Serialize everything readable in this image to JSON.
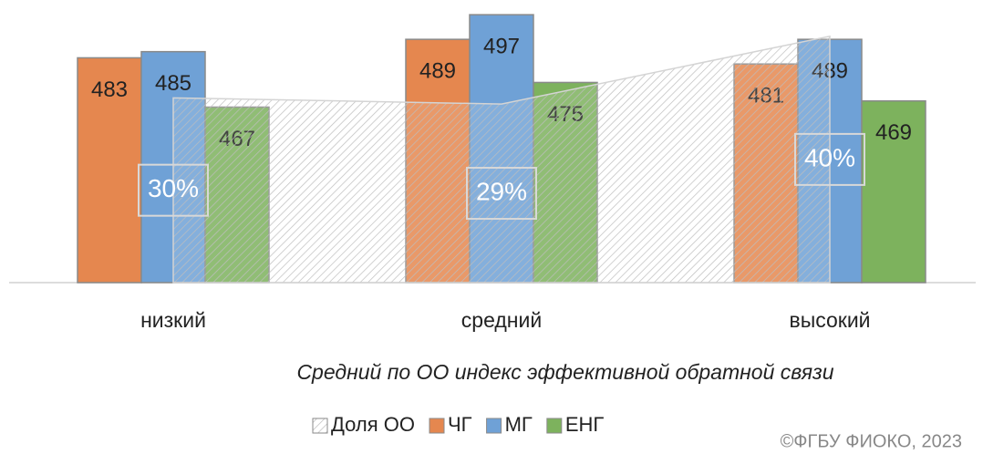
{
  "chart_data": {
    "type": "bar",
    "categories": [
      "низкий",
      "средний",
      "высокий"
    ],
    "x_label": "Средний по ОО индекс  эффективной обратной связи",
    "source": "©ФГБУ ФИОКО, 2023",
    "ylim": [
      410,
      500
    ],
    "y2lim": [
      0,
      45
    ],
    "legend": "bottom",
    "series": [
      {
        "name": "Доля ОО",
        "type": "area",
        "axis": "y2",
        "color": "#b0b0b0",
        "values": [
          30,
          29,
          40
        ],
        "value_labels": [
          "30%",
          "29%",
          "40%"
        ]
      },
      {
        "name": "ЧГ",
        "color": "#e5874f",
        "values": [
          483,
          489,
          481
        ]
      },
      {
        "name": "МГ",
        "color": "#6fa1d6",
        "values": [
          485,
          497,
          489
        ]
      },
      {
        "name": "ЕНГ",
        "color": "#7db25d",
        "values": [
          467,
          475,
          469
        ]
      }
    ]
  }
}
